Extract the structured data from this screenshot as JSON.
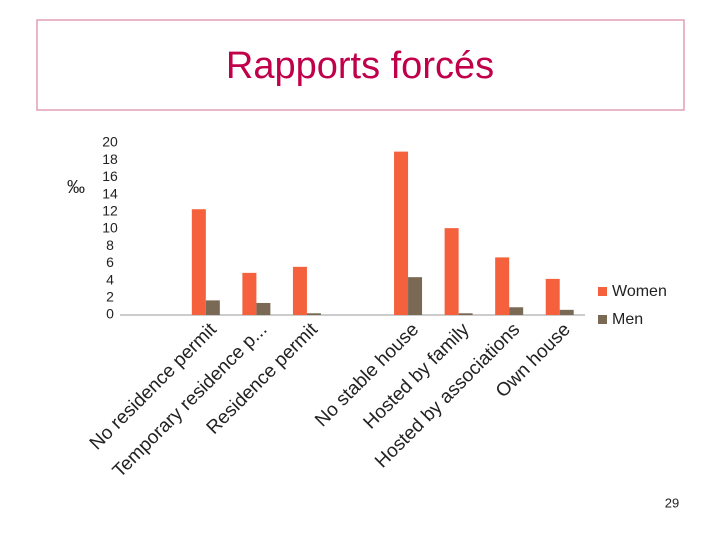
{
  "chart_data": {
    "type": "bar",
    "title": "Rapports forcés",
    "y_label": "‰",
    "categories": [
      null,
      "No residence permit",
      "Temporary residence p...",
      "Residence permit",
      null,
      "No stable house",
      "Hosted by family",
      "Hosted by associations",
      "Own house"
    ],
    "series": [
      {
        "name": "Women",
        "color": "#f4613c",
        "values": [
          null,
          12.3,
          4.9,
          5.6,
          null,
          19.0,
          10.1,
          6.7,
          4.2
        ]
      },
      {
        "name": "Men",
        "color": "#7a6a55",
        "values": [
          null,
          1.7,
          1.4,
          0.2,
          null,
          4.4,
          0.2,
          0.9,
          0.6
        ]
      }
    ],
    "ylim": [
      0,
      20
    ],
    "yticks": [
      0,
      2,
      4,
      6,
      8,
      10,
      12,
      14,
      16,
      18,
      20
    ],
    "grid": false,
    "legend": "right",
    "page_number": "29"
  }
}
